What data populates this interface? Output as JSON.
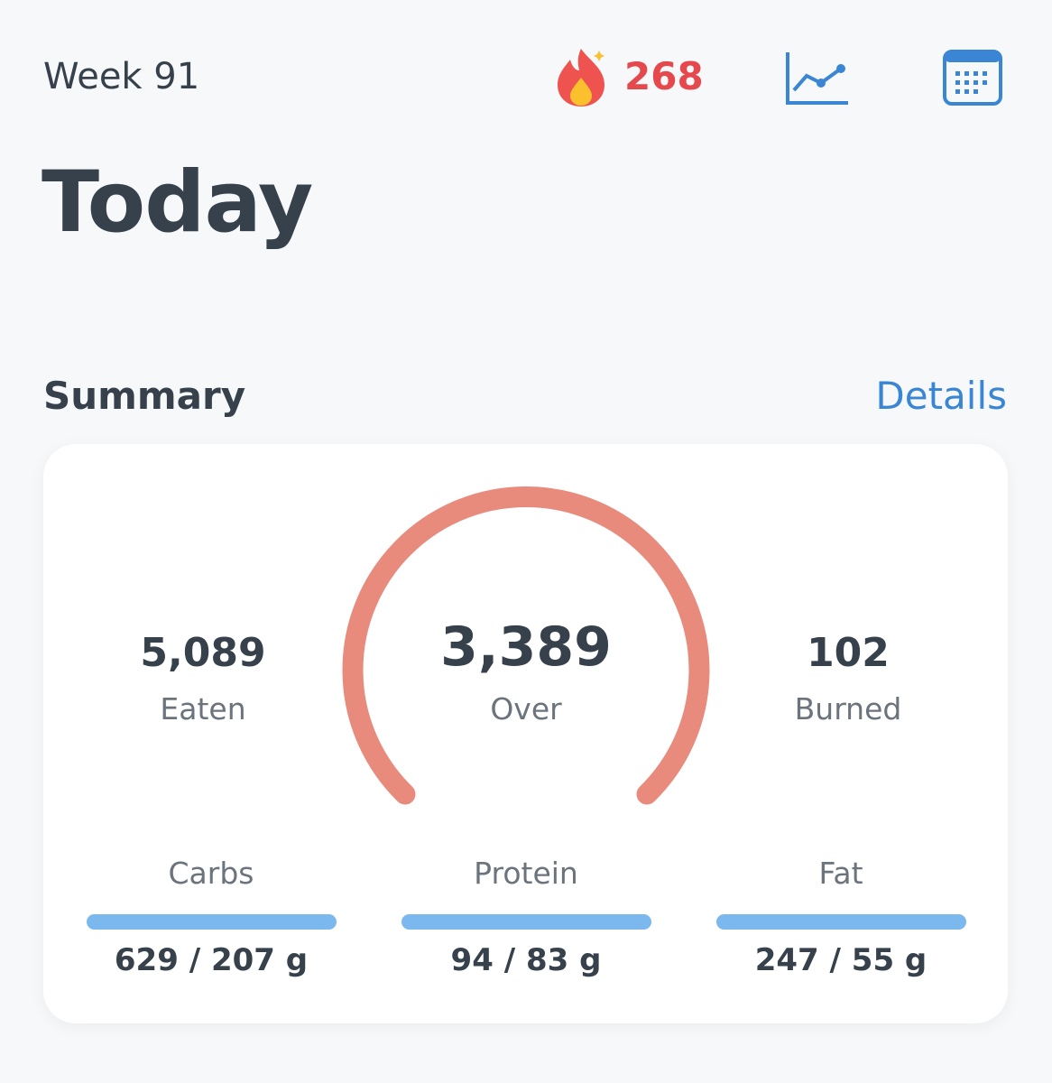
{
  "header": {
    "week": "Week 91",
    "streak": "268",
    "title": "Today"
  },
  "summary": {
    "heading": "Summary",
    "link": "Details",
    "eaten": {
      "value": "5,089",
      "label": "Eaten"
    },
    "balance": {
      "value": "3,389",
      "label": "Over"
    },
    "burned": {
      "value": "102",
      "label": "Burned"
    },
    "macros": [
      {
        "name": "Carbs",
        "amount": "629 / 207 g"
      },
      {
        "name": "Protein",
        "amount": "94 / 83 g"
      },
      {
        "name": "Fat",
        "amount": "247 / 55 g"
      }
    ]
  }
}
